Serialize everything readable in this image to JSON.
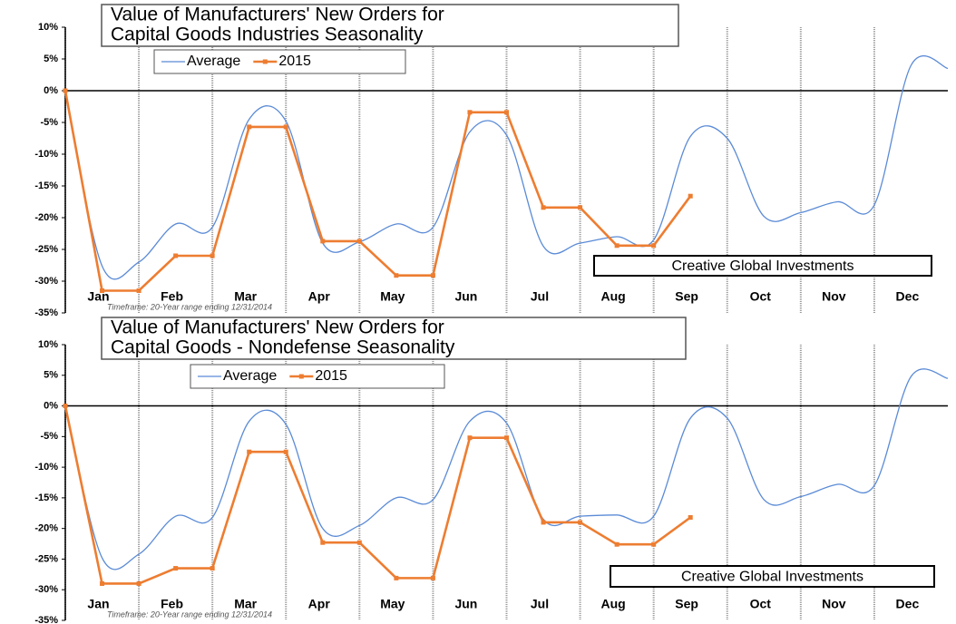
{
  "chart_data": [
    {
      "type": "line",
      "title": [
        "Value of Manufacturers' New Orders for",
        "Capital Goods Industries Seasonality"
      ],
      "subtitle": "Timeframe: 20-Year range ending 12/31/2014",
      "annotation": "Creative Global Investments",
      "x": [
        0,
        0.5,
        1,
        1.5,
        2,
        2.5,
        3,
        3.5,
        4,
        4.5,
        5,
        5.5,
        6,
        6.5,
        7,
        7.5,
        8,
        8.5,
        9,
        9.5,
        10,
        10.5,
        11,
        11.5,
        12
      ],
      "series": [
        {
          "name": "Average",
          "color": "#5b8bd6",
          "values": [
            0,
            -27.6,
            -27,
            -21,
            -21.5,
            -4.5,
            -4.8,
            -24,
            -23.8,
            -21,
            -21.5,
            -6.5,
            -7,
            -24.5,
            -24,
            -23,
            -23.5,
            -7.2,
            -7.5,
            -19.8,
            -19.2,
            -17.5,
            -18,
            4,
            3.5
          ]
        },
        {
          "name": "2015",
          "color": "#ed7d31",
          "values": [
            0,
            -31.5,
            -31.5,
            -26,
            -26,
            -5.7,
            -5.7,
            -23.7,
            -23.7,
            -29.1,
            -29.1,
            -3.4,
            -3.4,
            -18.4,
            -18.4,
            -24.4,
            -24.4,
            -16.6,
            null,
            null,
            null,
            null,
            null,
            null,
            null
          ]
        }
      ],
      "xlim": [
        0,
        12
      ],
      "xticks": [
        {
          "value": 0,
          "label": "Jan"
        },
        {
          "value": 1,
          "label": "Feb"
        },
        {
          "value": 2,
          "label": "Mar"
        },
        {
          "value": 3,
          "label": "Apr"
        },
        {
          "value": 4,
          "label": "May"
        },
        {
          "value": 5,
          "label": "Jun"
        },
        {
          "value": 6,
          "label": "Jul"
        },
        {
          "value": 7,
          "label": "Aug"
        },
        {
          "value": 8,
          "label": "Sep"
        },
        {
          "value": 9,
          "label": "Oct"
        },
        {
          "value": 10,
          "label": "Nov"
        },
        {
          "value": 11,
          "label": "Dec"
        }
      ],
      "ylim": [
        -35,
        10
      ],
      "yticks": [
        {
          "value": 10,
          "label": "10%"
        },
        {
          "value": 5,
          "label": "5%"
        },
        {
          "value": 0,
          "label": "0%"
        },
        {
          "value": -5,
          "label": "-5%"
        },
        {
          "value": -10,
          "label": "-10%"
        },
        {
          "value": -15,
          "label": "-15%"
        },
        {
          "value": -20,
          "label": "-20%"
        },
        {
          "value": -25,
          "label": "-25%"
        },
        {
          "value": -30,
          "label": "-30%"
        },
        {
          "value": -35,
          "label": "-35%"
        }
      ],
      "grid": true
    },
    {
      "type": "line",
      "title": [
        "Value of Manufacturers' New Orders for",
        "Capital Goods - Nondefense Seasonality"
      ],
      "subtitle": "Timeframe: 20-Year range ending 12/31/2014",
      "annotation": "Creative Global Investments",
      "x": [
        0,
        0.5,
        1,
        1.5,
        2,
        2.5,
        3,
        3.5,
        4,
        4.5,
        5,
        5.5,
        6,
        6.5,
        7,
        7.5,
        8,
        8.5,
        9,
        9.5,
        10,
        10.5,
        11,
        11.5,
        12
      ],
      "series": [
        {
          "name": "Average",
          "color": "#5b8bd6",
          "values": [
            0,
            -24.8,
            -24.2,
            -18,
            -18.2,
            -2.5,
            -3,
            -20,
            -19.5,
            -15,
            -15.3,
            -2.5,
            -2.8,
            -18.5,
            -18,
            -17.8,
            -18,
            -2,
            -2,
            -15.3,
            -14.8,
            -12.8,
            -13,
            4.8,
            4.5
          ]
        },
        {
          "name": "2015",
          "color": "#ed7d31",
          "values": [
            0,
            -29,
            -29,
            -26.5,
            -26.5,
            -7.5,
            -7.5,
            -22.3,
            -22.3,
            -28.1,
            -28.1,
            -5.2,
            -5.2,
            -19,
            -19,
            -22.6,
            -22.6,
            -18.2,
            null,
            null,
            null,
            null,
            null,
            null,
            null
          ]
        }
      ],
      "xlim": [
        0,
        12
      ],
      "xticks": [
        {
          "value": 0,
          "label": "Jan"
        },
        {
          "value": 1,
          "label": "Feb"
        },
        {
          "value": 2,
          "label": "Mar"
        },
        {
          "value": 3,
          "label": "Apr"
        },
        {
          "value": 4,
          "label": "May"
        },
        {
          "value": 5,
          "label": "Jun"
        },
        {
          "value": 6,
          "label": "Jul"
        },
        {
          "value": 7,
          "label": "Aug"
        },
        {
          "value": 8,
          "label": "Sep"
        },
        {
          "value": 9,
          "label": "Oct"
        },
        {
          "value": 10,
          "label": "Nov"
        },
        {
          "value": 11,
          "label": "Dec"
        }
      ],
      "ylim": [
        -35,
        10
      ],
      "yticks": [
        {
          "value": 10,
          "label": "10%"
        },
        {
          "value": 5,
          "label": "5%"
        },
        {
          "value": 0,
          "label": "0%"
        },
        {
          "value": -5,
          "label": "-5%"
        },
        {
          "value": -10,
          "label": "-10%"
        },
        {
          "value": -15,
          "label": "-15%"
        },
        {
          "value": -20,
          "label": "-20%"
        },
        {
          "value": -25,
          "label": "-25%"
        },
        {
          "value": -30,
          "label": "-30%"
        },
        {
          "value": -35,
          "label": "-35%"
        }
      ],
      "grid": true
    }
  ]
}
